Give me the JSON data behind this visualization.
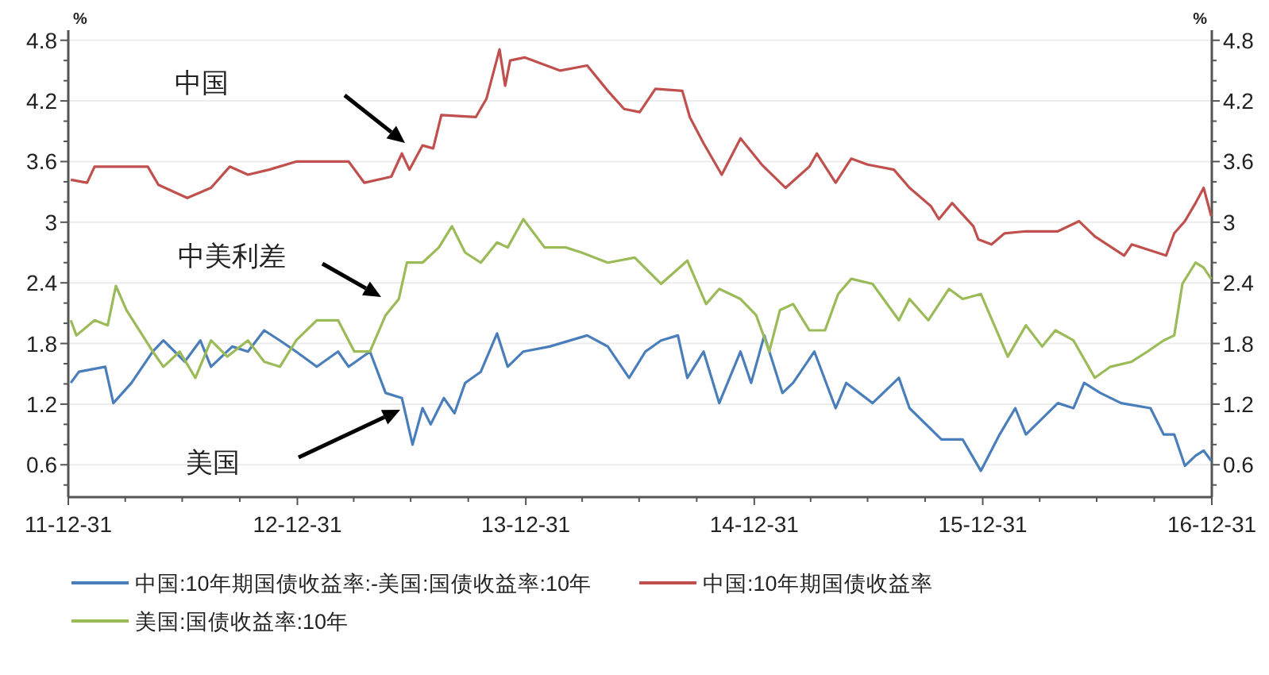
{
  "chart_data": {
    "type": "line",
    "ylabel": "%",
    "y2label": "%",
    "xlim": [
      "2011-12-31",
      "2016-12-31"
    ],
    "xticks": [
      {
        "value": "2011-12-31",
        "label": "11-12-31"
      },
      {
        "value": "2012-03-31",
        "label": null
      },
      {
        "value": "2012-06-30",
        "label": null
      },
      {
        "value": "2012-09-30",
        "label": null
      },
      {
        "value": "2012-12-31",
        "label": "12-12-31"
      },
      {
        "value": "2013-03-31",
        "label": null
      },
      {
        "value": "2013-06-30",
        "label": null
      },
      {
        "value": "2013-09-30",
        "label": null
      },
      {
        "value": "2013-12-31",
        "label": "13-12-31"
      },
      {
        "value": "2014-03-31",
        "label": null
      },
      {
        "value": "2014-06-30",
        "label": null
      },
      {
        "value": "2014-09-30",
        "label": null
      },
      {
        "value": "2014-12-31",
        "label": "14-12-31"
      },
      {
        "value": "2015-03-31",
        "label": null
      },
      {
        "value": "2015-06-30",
        "label": null
      },
      {
        "value": "2015-09-30",
        "label": null
      },
      {
        "value": "2015-12-31",
        "label": "15-12-31"
      },
      {
        "value": "2016-03-31",
        "label": null
      },
      {
        "value": "2016-06-30",
        "label": null
      },
      {
        "value": "2016-09-30",
        "label": null
      },
      {
        "value": "2016-12-31",
        "label": "16-12-31"
      }
    ],
    "ylim": [
      0.28,
      4.9
    ],
    "yticks": [
      {
        "value": 0.4,
        "label": null
      },
      0.6,
      {
        "value": 0.8,
        "label": null
      },
      {
        "value": 1.0,
        "label": null
      },
      1.2,
      {
        "value": 1.4,
        "label": null
      },
      {
        "value": 1.6,
        "label": null
      },
      1.8,
      {
        "value": 2.0,
        "label": null
      },
      {
        "value": 2.2,
        "label": null
      },
      2.4,
      {
        "value": 2.6,
        "label": null
      },
      {
        "value": 2.8,
        "label": null
      },
      3.0,
      {
        "value": 3.2,
        "label": null
      },
      {
        "value": 3.4,
        "label": null
      },
      3.6,
      {
        "value": 3.8,
        "label": null
      },
      {
        "value": 4.0,
        "label": null
      },
      4.2,
      {
        "value": 4.4,
        "label": null
      },
      {
        "value": 4.6,
        "label": null
      },
      4.8
    ],
    "y2lim": [
      0.28,
      4.9
    ],
    "y2ticks": [
      {
        "value": 0.4,
        "label": null
      },
      0.6,
      {
        "value": 0.8,
        "label": null
      },
      {
        "value": 1.0,
        "label": null
      },
      1.2,
      {
        "value": 1.4,
        "label": null
      },
      {
        "value": 1.6,
        "label": null
      },
      1.8,
      {
        "value": 2.0,
        "label": null
      },
      {
        "value": 2.2,
        "label": null
      },
      2.4,
      {
        "value": 2.6,
        "label": null
      },
      {
        "value": 2.8,
        "label": null
      },
      3.0,
      {
        "value": 3.2,
        "label": null
      },
      {
        "value": 3.4,
        "label": null
      },
      3.6,
      {
        "value": 3.8,
        "label": null
      },
      {
        "value": 4.0,
        "label": null
      },
      4.2,
      {
        "value": 4.4,
        "label": null
      },
      {
        "value": 4.6,
        "label": null
      },
      4.8
    ],
    "grid": "y",
    "legend": "bottom",
    "line_style": "solid",
    "series": [
      {
        "name": "中国:10年期国债收益率:-美国:国债收益率:10年",
        "color": "#4a7ebb",
        "x": [
          "2012-01-04",
          "2012-01-17",
          "2012-02-28",
          "2012-03-12",
          "2012-04-10",
          "2012-05-14",
          "2012-05-31",
          "2012-07-04",
          "2012-07-29",
          "2012-08-15",
          "2012-09-18",
          "2012-10-13",
          "2012-11-08",
          "2012-12-03",
          "2012-12-29",
          "2013-01-31",
          "2013-03-06",
          "2013-03-23",
          "2013-04-26",
          "2013-05-21",
          "2013-06-16",
          "2013-07-03",
          "2013-07-19",
          "2013-08-01",
          "2013-08-22",
          "2013-09-08",
          "2013-09-25",
          "2013-10-20",
          "2013-11-15",
          "2013-12-02",
          "2013-12-27",
          "2014-02-07",
          "2014-04-08",
          "2014-05-11",
          "2014-06-14",
          "2014-07-10",
          "2014-08-04",
          "2014-08-31",
          "2014-09-15",
          "2014-10-11",
          "2014-11-05",
          "2014-12-09",
          "2014-12-26",
          "2015-01-16",
          "2015-02-14",
          "2015-03-03",
          "2015-04-06",
          "2015-05-10",
          "2015-05-27",
          "2015-07-08",
          "2015-08-19",
          "2015-09-05",
          "2015-10-26",
          "2015-11-29",
          "2015-12-28",
          "2016-01-27",
          "2016-02-21",
          "2016-03-09",
          "2016-04-29",
          "2016-05-24",
          "2016-06-10",
          "2016-07-06",
          "2016-08-08",
          "2016-09-24",
          "2016-10-15",
          "2016-11-01",
          "2016-11-18",
          "2016-12-05",
          "2016-12-18",
          "2016-12-30"
        ],
        "values": [
          1.41,
          1.52,
          1.57,
          1.21,
          1.41,
          1.72,
          1.83,
          1.62,
          1.83,
          1.57,
          1.77,
          1.72,
          1.93,
          1.83,
          1.72,
          1.57,
          1.72,
          1.57,
          1.72,
          1.31,
          1.26,
          0.8,
          1.16,
          1.0,
          1.26,
          1.11,
          1.41,
          1.52,
          1.9,
          1.57,
          1.72,
          1.77,
          1.88,
          1.77,
          1.46,
          1.72,
          1.83,
          1.88,
          1.46,
          1.72,
          1.21,
          1.72,
          1.41,
          1.88,
          1.31,
          1.41,
          1.72,
          1.16,
          1.41,
          1.21,
          1.46,
          1.16,
          0.85,
          0.85,
          0.54,
          0.9,
          1.16,
          0.9,
          1.21,
          1.16,
          1.41,
          1.31,
          1.21,
          1.16,
          0.9,
          0.9,
          0.59,
          0.69,
          0.74,
          0.64
        ]
      },
      {
        "name": "中国:10年期国债收益率",
        "color": "#c0504d",
        "x": [
          "2012-01-04",
          "2012-01-30",
          "2012-02-11",
          "2012-05-06",
          "2012-05-23",
          "2012-07-08",
          "2012-08-15",
          "2012-09-14",
          "2012-10-13",
          "2012-11-16",
          "2012-12-29",
          "2013-03-23",
          "2013-04-17",
          "2013-05-30",
          "2013-06-16",
          "2013-06-28",
          "2013-07-19",
          "2013-08-05",
          "2013-08-18",
          "2013-10-12",
          "2013-10-29",
          "2013-11-19",
          "2013-11-28",
          "2013-12-06",
          "2013-12-29",
          "2014-02-24",
          "2014-04-08",
          "2014-05-11",
          "2014-06-06",
          "2014-07-01",
          "2014-07-26",
          "2014-09-07",
          "2014-09-19",
          "2014-10-11",
          "2014-11-09",
          "2014-12-09",
          "2015-01-12",
          "2015-02-19",
          "2015-03-29",
          "2015-04-10",
          "2015-05-10",
          "2015-06-04",
          "2015-06-30",
          "2015-08-11",
          "2015-09-05",
          "2015-10-09",
          "2015-10-22",
          "2015-11-12",
          "2015-12-16",
          "2015-12-24",
          "2016-01-14",
          "2016-02-04",
          "2016-03-09",
          "2016-04-29",
          "2016-06-02",
          "2016-06-27",
          "2016-08-13",
          "2016-08-25",
          "2016-10-19",
          "2016-11-01",
          "2016-11-18",
          "2016-12-05",
          "2016-12-18",
          "2016-12-30"
        ],
        "values": [
          3.42,
          3.39,
          3.55,
          3.55,
          3.37,
          3.24,
          3.34,
          3.55,
          3.47,
          3.52,
          3.6,
          3.6,
          3.39,
          3.45,
          3.68,
          3.52,
          3.76,
          3.73,
          4.06,
          4.04,
          4.22,
          4.71,
          4.35,
          4.6,
          4.63,
          4.5,
          4.55,
          4.3,
          4.12,
          4.09,
          4.32,
          4.3,
          4.04,
          3.78,
          3.47,
          3.83,
          3.57,
          3.34,
          3.55,
          3.68,
          3.39,
          3.63,
          3.57,
          3.52,
          3.34,
          3.16,
          3.03,
          3.19,
          2.96,
          2.83,
          2.78,
          2.89,
          2.91,
          2.91,
          3.01,
          2.86,
          2.67,
          2.78,
          2.67,
          2.89,
          3.01,
          3.19,
          3.34,
          3.06
        ]
      },
      {
        "name": "美国:国债收益率:10年",
        "color": "#9bbb59",
        "x": [
          "2012-01-04",
          "2012-01-13",
          "2012-02-11",
          "2012-03-03",
          "2012-03-16",
          "2012-04-02",
          "2012-05-14",
          "2012-05-31",
          "2012-06-26",
          "2012-07-21",
          "2012-08-15",
          "2012-09-10",
          "2012-10-13",
          "2012-11-08",
          "2012-12-03",
          "2012-12-29",
          "2013-01-31",
          "2013-03-06",
          "2013-04-01",
          "2013-04-26",
          "2013-05-21",
          "2013-06-11",
          "2013-06-24",
          "2013-07-19",
          "2013-08-14",
          "2013-09-04",
          "2013-09-25",
          "2013-10-20",
          "2013-11-15",
          "2013-12-02",
          "2013-12-27",
          "2014-01-30",
          "2014-03-05",
          "2014-03-30",
          "2014-05-11",
          "2014-06-23",
          "2014-08-04",
          "2014-09-15",
          "2014-10-15",
          "2014-11-05",
          "2014-12-09",
          "2015-01-03",
          "2015-01-24",
          "2015-02-10",
          "2015-03-03",
          "2015-03-29",
          "2015-04-23",
          "2015-05-14",
          "2015-06-04",
          "2015-07-08",
          "2015-08-19",
          "2015-09-05",
          "2015-10-05",
          "2015-11-07",
          "2015-11-29",
          "2015-12-28",
          "2016-02-09",
          "2016-03-09",
          "2016-04-04",
          "2016-04-25",
          "2016-05-24",
          "2016-06-27",
          "2016-07-22",
          "2016-08-25",
          "2016-09-19",
          "2016-10-15",
          "2016-11-01",
          "2016-11-14",
          "2016-12-05",
          "2016-12-18",
          "2016-12-30"
        ],
        "values": [
          2.03,
          1.88,
          2.03,
          1.98,
          2.37,
          2.13,
          1.72,
          1.57,
          1.72,
          1.46,
          1.83,
          1.67,
          1.83,
          1.62,
          1.57,
          1.83,
          2.03,
          2.03,
          1.72,
          1.72,
          2.08,
          2.24,
          2.6,
          2.6,
          2.75,
          2.96,
          2.7,
          2.6,
          2.8,
          2.75,
          3.03,
          2.75,
          2.75,
          2.7,
          2.6,
          2.65,
          2.39,
          2.62,
          2.19,
          2.34,
          2.24,
          2.08,
          1.72,
          2.13,
          2.19,
          1.93,
          1.93,
          2.29,
          2.44,
          2.39,
          2.03,
          2.24,
          2.03,
          2.34,
          2.24,
          2.29,
          1.67,
          1.98,
          1.77,
          1.93,
          1.83,
          1.46,
          1.57,
          1.62,
          1.72,
          1.83,
          1.88,
          2.39,
          2.6,
          2.55,
          2.44
        ]
      }
    ],
    "annotations": [
      "中国",
      "中美利差",
      "美国"
    ]
  }
}
